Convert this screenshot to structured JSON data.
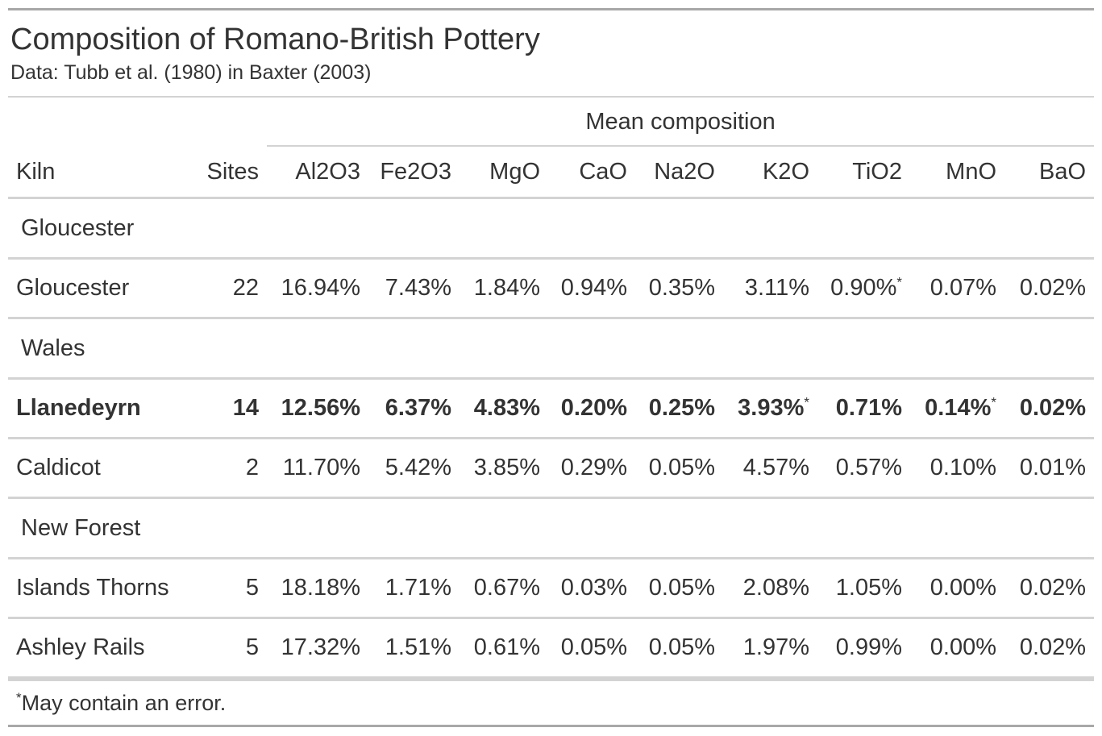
{
  "title": "Composition of Romano-British Pottery",
  "subtitle": "Data: Tubb et al. (1980) in Baxter (2003)",
  "spanner": "Mean composition",
  "columns": {
    "kiln": "Kiln",
    "sites": "Sites",
    "oxides": [
      "Al2O3",
      "Fe2O3",
      "MgO",
      "CaO",
      "Na2O",
      "K2O",
      "TiO2",
      "MnO",
      "BaO"
    ]
  },
  "groups": [
    {
      "name": "Gloucester",
      "rows": [
        {
          "kiln": "Gloucester",
          "sites": "22",
          "bold": false,
          "values": [
            "16.94%",
            "7.43%",
            "1.84%",
            "0.94%",
            "0.35%",
            "3.11%",
            "0.90%",
            "0.07%",
            "0.02%"
          ],
          "marks": [
            "",
            "",
            "",
            "",
            "",
            "",
            "*",
            "",
            ""
          ]
        }
      ]
    },
    {
      "name": "Wales",
      "rows": [
        {
          "kiln": "Llanedeyrn",
          "sites": "14",
          "bold": true,
          "values": [
            "12.56%",
            "6.37%",
            "4.83%",
            "0.20%",
            "0.25%",
            "3.93%",
            "0.71%",
            "0.14%",
            "0.02%"
          ],
          "marks": [
            "",
            "",
            "",
            "",
            "",
            "*",
            "",
            "*",
            ""
          ]
        },
        {
          "kiln": "Caldicot",
          "sites": "2",
          "bold": false,
          "values": [
            "11.70%",
            "5.42%",
            "3.85%",
            "0.29%",
            "0.05%",
            "4.57%",
            "0.57%",
            "0.10%",
            "0.01%"
          ],
          "marks": [
            "",
            "",
            "",
            "",
            "",
            "",
            "",
            "",
            ""
          ]
        }
      ]
    },
    {
      "name": "New Forest",
      "rows": [
        {
          "kiln": "Islands Thorns",
          "sites": "5",
          "bold": false,
          "values": [
            "18.18%",
            "1.71%",
            "0.67%",
            "0.03%",
            "0.05%",
            "2.08%",
            "1.05%",
            "0.00%",
            "0.02%"
          ],
          "marks": [
            "",
            "",
            "",
            "",
            "",
            "",
            "",
            "",
            ""
          ]
        },
        {
          "kiln": "Ashley Rails",
          "sites": "5",
          "bold": false,
          "values": [
            "17.32%",
            "1.51%",
            "0.61%",
            "0.05%",
            "0.05%",
            "1.97%",
            "0.99%",
            "0.00%",
            "0.02%"
          ],
          "marks": [
            "",
            "",
            "",
            "",
            "",
            "",
            "",
            "",
            ""
          ]
        }
      ]
    }
  ],
  "footnote": {
    "mark": "*",
    "text": "May contain an error."
  }
}
